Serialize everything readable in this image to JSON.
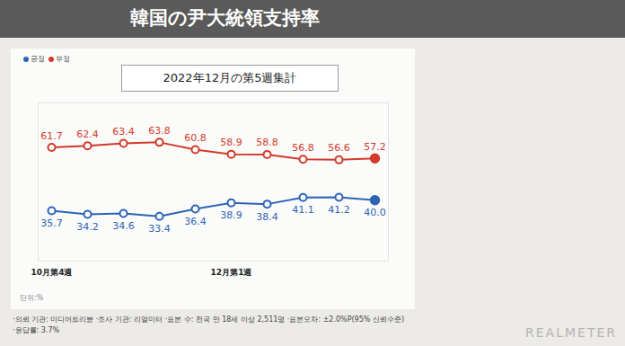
{
  "chart_data": {
    "type": "line",
    "title": "韓国の尹大統領支持率",
    "subtitle": "2022年12月の第5週集計",
    "categories": [
      "10月第4週",
      null,
      null,
      null,
      null,
      "12月第1週",
      null,
      null,
      null,
      null
    ],
    "series": [
      {
        "name": "긍정",
        "color": "#2d64b4",
        "values": [
          35.7,
          34.2,
          34.6,
          33.4,
          36.4,
          38.9,
          38.4,
          41.1,
          41.2,
          40.0
        ],
        "value_labels": [
          "35.7",
          "34.2",
          "34.6",
          "33.4",
          "36.4",
          "38.9",
          "38.4",
          "41.1",
          "41.2",
          "40.0"
        ]
      },
      {
        "name": "부정",
        "color": "#d23a2c",
        "values": [
          61.7,
          62.4,
          63.4,
          63.8,
          60.8,
          58.9,
          58.8,
          56.8,
          56.6,
          57.2
        ],
        "value_labels": [
          "61.7",
          "62.4",
          "63.4",
          "63.8",
          "60.8",
          "58.9",
          "58.8",
          "56.8",
          "56.6",
          "57.2"
        ]
      }
    ],
    "ylim": [
      15,
      80
    ],
    "tick_labels": "x",
    "data_labels": true,
    "grid": false,
    "legend": "top-left",
    "marker": "circle",
    "annotations": [
      "단위:%",
      "·의뢰 기관: 미디어트리뷴 ·조사 기관: 리얼미터 ·표본 수: 전국 만 18세 이상 2,511명 ·표본오차: ±2.0%P(95% 신뢰수준) ·응답률: 3.7%",
      "REALMETER"
    ]
  }
}
